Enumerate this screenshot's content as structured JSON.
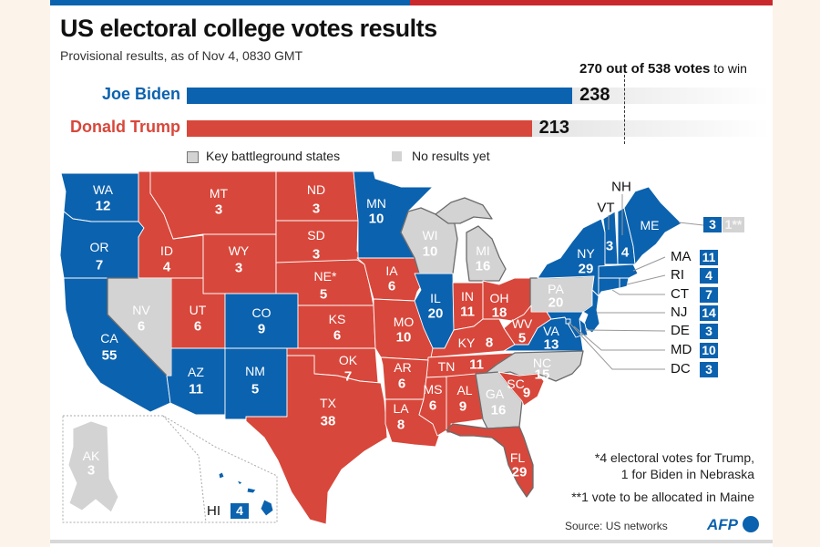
{
  "header": {
    "title": "US electoral college votes results",
    "subtitle": "Provisional results, as of Nov 4, 0830 GMT"
  },
  "threshold": {
    "bold": "270 out of 538 votes",
    "rest": " to win",
    "value": 270,
    "total": 538
  },
  "candidates": [
    {
      "name": "Joe Biden",
      "votes": 238,
      "color": "#0b62ae"
    },
    {
      "name": "Donald Trump",
      "votes": 213,
      "color": "#d8473b"
    }
  ],
  "legend": {
    "battleground": "Key battleground states",
    "no_results": "No results yet"
  },
  "colors": {
    "biden": "#0b62ae",
    "trump": "#d8473b",
    "pending": "#d3d3d3",
    "battleground_outline": "#6b6b6b"
  },
  "states": [
    {
      "abbr": "WA",
      "votes": "12",
      "winner": "biden"
    },
    {
      "abbr": "OR",
      "votes": "7",
      "winner": "biden"
    },
    {
      "abbr": "CA",
      "votes": "55",
      "winner": "biden"
    },
    {
      "abbr": "NV",
      "votes": "6",
      "winner": "pending",
      "battleground": true
    },
    {
      "abbr": "ID",
      "votes": "4",
      "winner": "trump"
    },
    {
      "abbr": "MT",
      "votes": "3",
      "winner": "trump"
    },
    {
      "abbr": "WY",
      "votes": "3",
      "winner": "trump"
    },
    {
      "abbr": "UT",
      "votes": "6",
      "winner": "trump"
    },
    {
      "abbr": "CO",
      "votes": "9",
      "winner": "biden"
    },
    {
      "abbr": "AZ",
      "votes": "11",
      "winner": "biden"
    },
    {
      "abbr": "NM",
      "votes": "5",
      "winner": "biden"
    },
    {
      "abbr": "ND",
      "votes": "3",
      "winner": "trump"
    },
    {
      "abbr": "SD",
      "votes": "3",
      "winner": "trump"
    },
    {
      "abbr": "NE*",
      "votes": "5",
      "winner": "trump"
    },
    {
      "abbr": "KS",
      "votes": "6",
      "winner": "trump"
    },
    {
      "abbr": "OK",
      "votes": "7",
      "winner": "trump"
    },
    {
      "abbr": "TX",
      "votes": "38",
      "winner": "trump"
    },
    {
      "abbr": "MN",
      "votes": "10",
      "winner": "biden"
    },
    {
      "abbr": "IA",
      "votes": "6",
      "winner": "trump"
    },
    {
      "abbr": "WI",
      "votes": "10",
      "winner": "pending",
      "battleground": true
    },
    {
      "abbr": "MI",
      "votes": "16",
      "winner": "pending",
      "battleground": true
    },
    {
      "abbr": "IL",
      "votes": "20",
      "winner": "biden"
    },
    {
      "abbr": "MO",
      "votes": "10",
      "winner": "trump"
    },
    {
      "abbr": "IN",
      "votes": "11",
      "winner": "trump"
    },
    {
      "abbr": "OH",
      "votes": "18",
      "winner": "trump"
    },
    {
      "abbr": "PA",
      "votes": "20",
      "winner": "pending",
      "battleground": true
    },
    {
      "abbr": "NY",
      "votes": "29",
      "winner": "biden"
    },
    {
      "abbr": "WV",
      "votes": "5",
      "winner": "trump"
    },
    {
      "abbr": "KY",
      "votes": "8",
      "winner": "trump"
    },
    {
      "abbr": "VA",
      "votes": "13",
      "winner": "biden"
    },
    {
      "abbr": "TN",
      "votes": "11",
      "winner": "trump"
    },
    {
      "abbr": "NC",
      "votes": "15",
      "winner": "pending",
      "battleground": true
    },
    {
      "abbr": "AR",
      "votes": "6",
      "winner": "trump"
    },
    {
      "abbr": "LA",
      "votes": "8",
      "winner": "trump"
    },
    {
      "abbr": "MS",
      "votes": "6",
      "winner": "trump"
    },
    {
      "abbr": "AL",
      "votes": "9",
      "winner": "trump"
    },
    {
      "abbr": "GA",
      "votes": "16",
      "winner": "pending",
      "battleground": true
    },
    {
      "abbr": "SC",
      "votes": "9",
      "winner": "trump"
    },
    {
      "abbr": "FL",
      "votes": "29",
      "winner": "trump",
      "battleground": true
    },
    {
      "abbr": "VT",
      "votes": "3",
      "winner": "biden"
    },
    {
      "abbr": "NH",
      "votes": "4",
      "winner": "biden"
    },
    {
      "abbr": "ME",
      "votes": "3",
      "winner": "biden",
      "pending_extra": "1**"
    },
    {
      "abbr": "MA",
      "votes": "11",
      "winner": "biden",
      "callout": true
    },
    {
      "abbr": "RI",
      "votes": "4",
      "winner": "biden",
      "callout": true
    },
    {
      "abbr": "CT",
      "votes": "7",
      "winner": "biden",
      "callout": true
    },
    {
      "abbr": "NJ",
      "votes": "14",
      "winner": "biden",
      "callout": true
    },
    {
      "abbr": "DE",
      "votes": "3",
      "winner": "biden",
      "callout": true
    },
    {
      "abbr": "MD",
      "votes": "10",
      "winner": "biden",
      "callout": true
    },
    {
      "abbr": "DC",
      "votes": "3",
      "winner": "biden",
      "callout": true
    },
    {
      "abbr": "AK",
      "votes": "3",
      "winner": "pending"
    },
    {
      "abbr": "HI",
      "votes": "4",
      "winner": "biden"
    }
  ],
  "notes": [
    "*4 electoral votes for Trump,",
    "1 for Biden in Nebraska",
    "**1 vote to be allocated in Maine"
  ],
  "source": "Source: US networks",
  "logo": "AFP"
}
